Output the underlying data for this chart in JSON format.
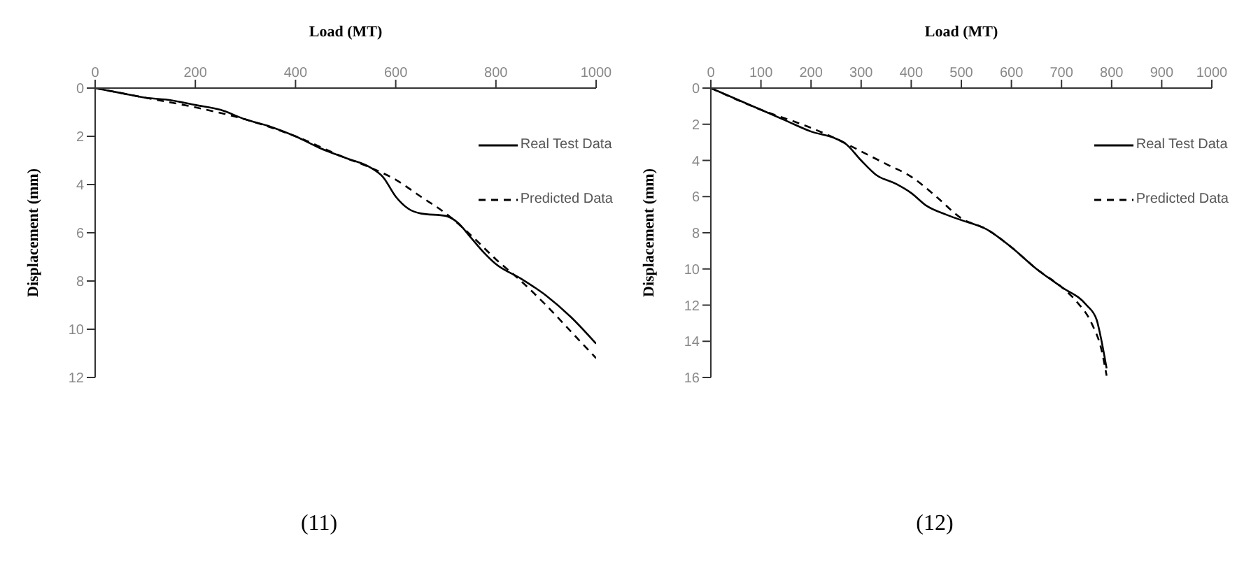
{
  "chart_data": [
    {
      "type": "line",
      "xlabel": "Load (MT)",
      "ylabel": "Displacement (mm)",
      "annotations": [
        "(11)"
      ],
      "xlim": [
        0,
        1000
      ],
      "xticks": [
        0,
        200,
        400,
        600,
        800,
        1000
      ],
      "ylim": [
        12,
        0
      ],
      "yticks": [
        0,
        2,
        4,
        6,
        8,
        10,
        12
      ],
      "legend": "top right",
      "grid": false,
      "marker": "none",
      "series": [
        {
          "name": "Real Test Data",
          "color": "#000000",
          "line_style": "solid",
          "x": [
            0,
            50,
            100,
            150,
            200,
            250,
            300,
            350,
            400,
            450,
            500,
            550,
            575,
            600,
            625,
            650,
            700,
            725,
            750,
            775,
            800,
            850,
            900,
            950,
            1000
          ],
          "values": [
            0,
            0.2,
            0.4,
            0.5,
            0.7,
            0.9,
            1.3,
            1.6,
            2.0,
            2.5,
            2.9,
            3.3,
            3.7,
            4.5,
            5.0,
            5.2,
            5.3,
            5.6,
            6.2,
            6.8,
            7.3,
            7.9,
            8.6,
            9.5,
            10.6
          ]
        },
        {
          "name": "Predicted Data",
          "color": "#000000",
          "line_style": "dashed",
          "x": [
            0,
            100,
            200,
            300,
            400,
            500,
            550,
            600,
            650,
            700,
            750,
            800,
            850,
            900,
            950,
            1000
          ],
          "values": [
            0,
            0.4,
            0.8,
            1.3,
            2.0,
            2.9,
            3.3,
            3.8,
            4.5,
            5.2,
            6.1,
            7.1,
            8.0,
            9.0,
            10.1,
            11.2
          ]
        }
      ]
    },
    {
      "type": "line",
      "xlabel": "Load (MT)",
      "ylabel": "Displacement (mm)",
      "annotations": [
        "(12)"
      ],
      "xlim": [
        0,
        1000
      ],
      "xticks": [
        0,
        100,
        200,
        300,
        400,
        500,
        600,
        700,
        800,
        900,
        1000
      ],
      "ylim": [
        16,
        0
      ],
      "yticks": [
        0,
        2,
        4,
        6,
        8,
        10,
        12,
        14,
        16
      ],
      "legend": "top right",
      "grid": false,
      "marker": "none",
      "series": [
        {
          "name": "Real Test Data",
          "color": "#000000",
          "line_style": "solid",
          "x": [
            0,
            50,
            100,
            150,
            200,
            250,
            270,
            300,
            330,
            370,
            400,
            430,
            470,
            500,
            550,
            600,
            650,
            700,
            750,
            770,
            780,
            790
          ],
          "values": [
            0,
            0.6,
            1.2,
            1.8,
            2.4,
            2.8,
            3.1,
            4.0,
            4.8,
            5.3,
            5.8,
            6.5,
            7.0,
            7.3,
            7.8,
            8.8,
            10.0,
            11.0,
            12.0,
            12.8,
            14.0,
            15.5
          ]
        },
        {
          "name": "Predicted Data",
          "color": "#000000",
          "line_style": "dashed",
          "x": [
            0,
            100,
            200,
            250,
            300,
            350,
            400,
            450,
            500,
            550,
            600,
            650,
            700,
            730,
            760,
            780,
            790
          ],
          "values": [
            0,
            1.2,
            2.2,
            2.8,
            3.5,
            4.2,
            4.9,
            6.0,
            7.2,
            7.8,
            8.8,
            10.0,
            11.0,
            11.8,
            13.0,
            14.5,
            15.9
          ]
        }
      ]
    }
  ]
}
